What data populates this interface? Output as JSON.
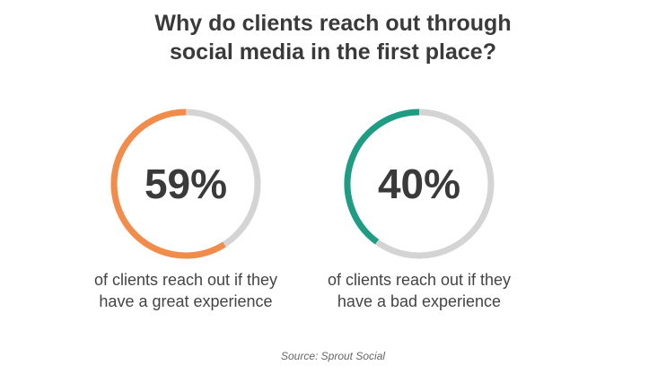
{
  "chart_data": {
    "type": "ring",
    "title": "Why do clients reach out through social media in the first place?",
    "values": [
      59,
      40
    ],
    "value_labels": [
      "59%",
      "40%"
    ],
    "categories": [
      "of clients reach out if they have a great experience",
      "of clients reach out if they have a bad experience"
    ],
    "colors": [
      "#f28c4a",
      "#1e9c84"
    ],
    "track_color": "#d4d4d4",
    "source": "Source: Sprout Social"
  }
}
